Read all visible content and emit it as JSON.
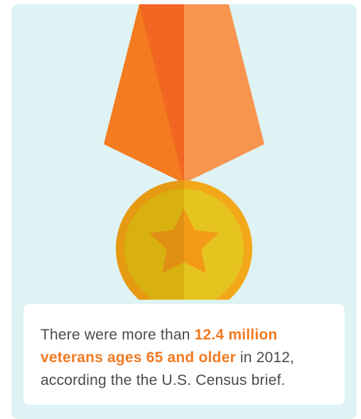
{
  "caption": {
    "before": "There were more than ",
    "highlight": "12.4 million veterans ages 65 and older",
    "after": " in 2012, according the the U.S. Census brief."
  },
  "illustration": {
    "icon": "medal-with-star-icon",
    "colors": {
      "background": "#dff3f4",
      "ribbon_left": "#f47b20",
      "ribbon_center": "#f26522",
      "ribbon_right": "#f7954f",
      "medal_rim_left": "#e59a12",
      "medal_rim_right": "#f3a81a",
      "medal_face_left": "#d8b010",
      "medal_face_right": "#e6c420",
      "star_left": "#e08e14",
      "star_right": "#f39a16",
      "highlight_text": "#f07a22"
    }
  }
}
